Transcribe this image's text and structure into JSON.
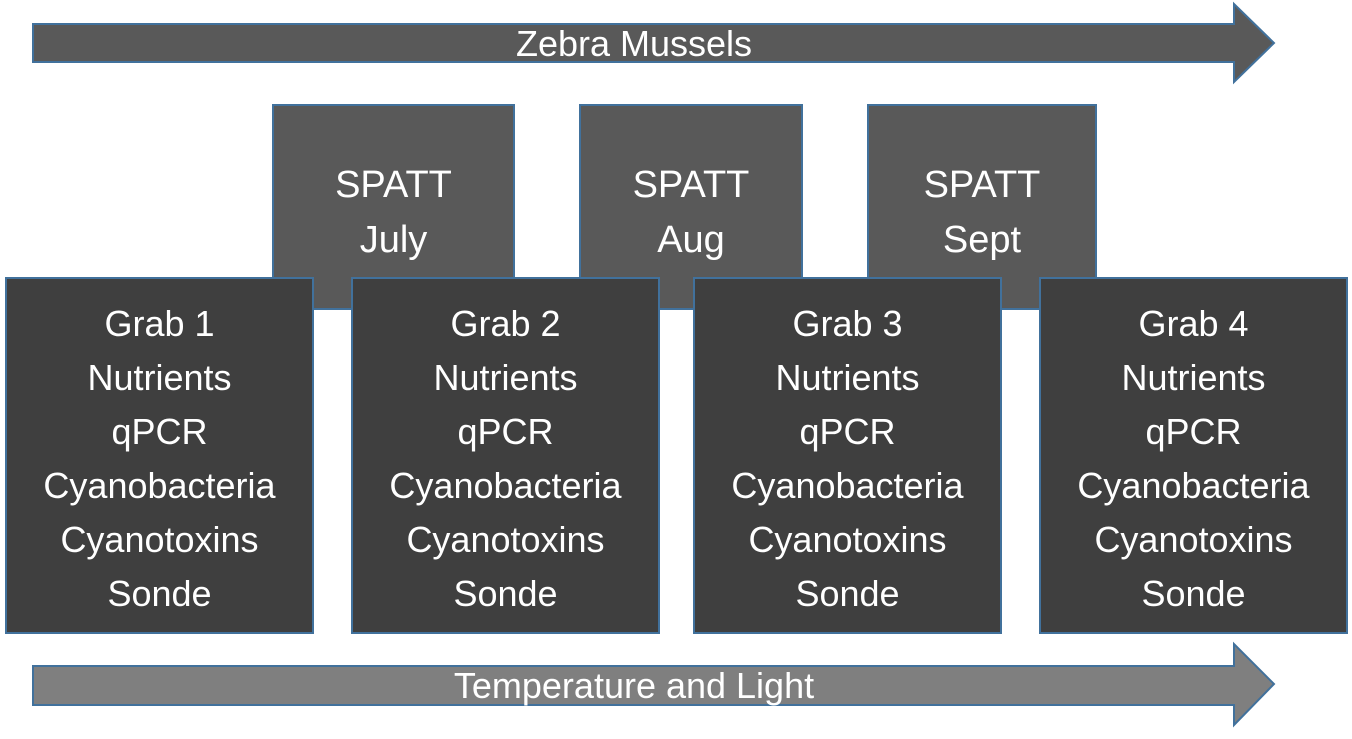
{
  "top_arrow": {
    "label": "Zebra Mussels",
    "color": "#595959"
  },
  "bottom_arrow": {
    "label": "Temperature and Light",
    "color": "#7f7f7f"
  },
  "spatt_boxes": [
    {
      "line1": "SPATT",
      "line2": "July"
    },
    {
      "line1": "SPATT",
      "line2": "Aug"
    },
    {
      "line1": "SPATT",
      "line2": "Sept"
    }
  ],
  "grab_boxes": [
    {
      "title": "Grab 1",
      "items": [
        "Nutrients",
        "qPCR",
        "Cyanobacteria",
        "Cyanotoxins",
        "Sonde"
      ]
    },
    {
      "title": "Grab 2",
      "items": [
        "Nutrients",
        "qPCR",
        "Cyanobacteria",
        "Cyanotoxins",
        "Sonde"
      ]
    },
    {
      "title": "Grab 3",
      "items": [
        "Nutrients",
        "qPCR",
        "Cyanobacteria",
        "Cyanotoxins",
        "Sonde"
      ]
    },
    {
      "title": "Grab 4",
      "items": [
        "Nutrients",
        "qPCR",
        "Cyanobacteria",
        "Cyanotoxins",
        "Sonde"
      ]
    }
  ],
  "colors": {
    "box_border": "#41719c",
    "spatt_fill": "#595959",
    "grab_fill": "#3f3f3f"
  }
}
